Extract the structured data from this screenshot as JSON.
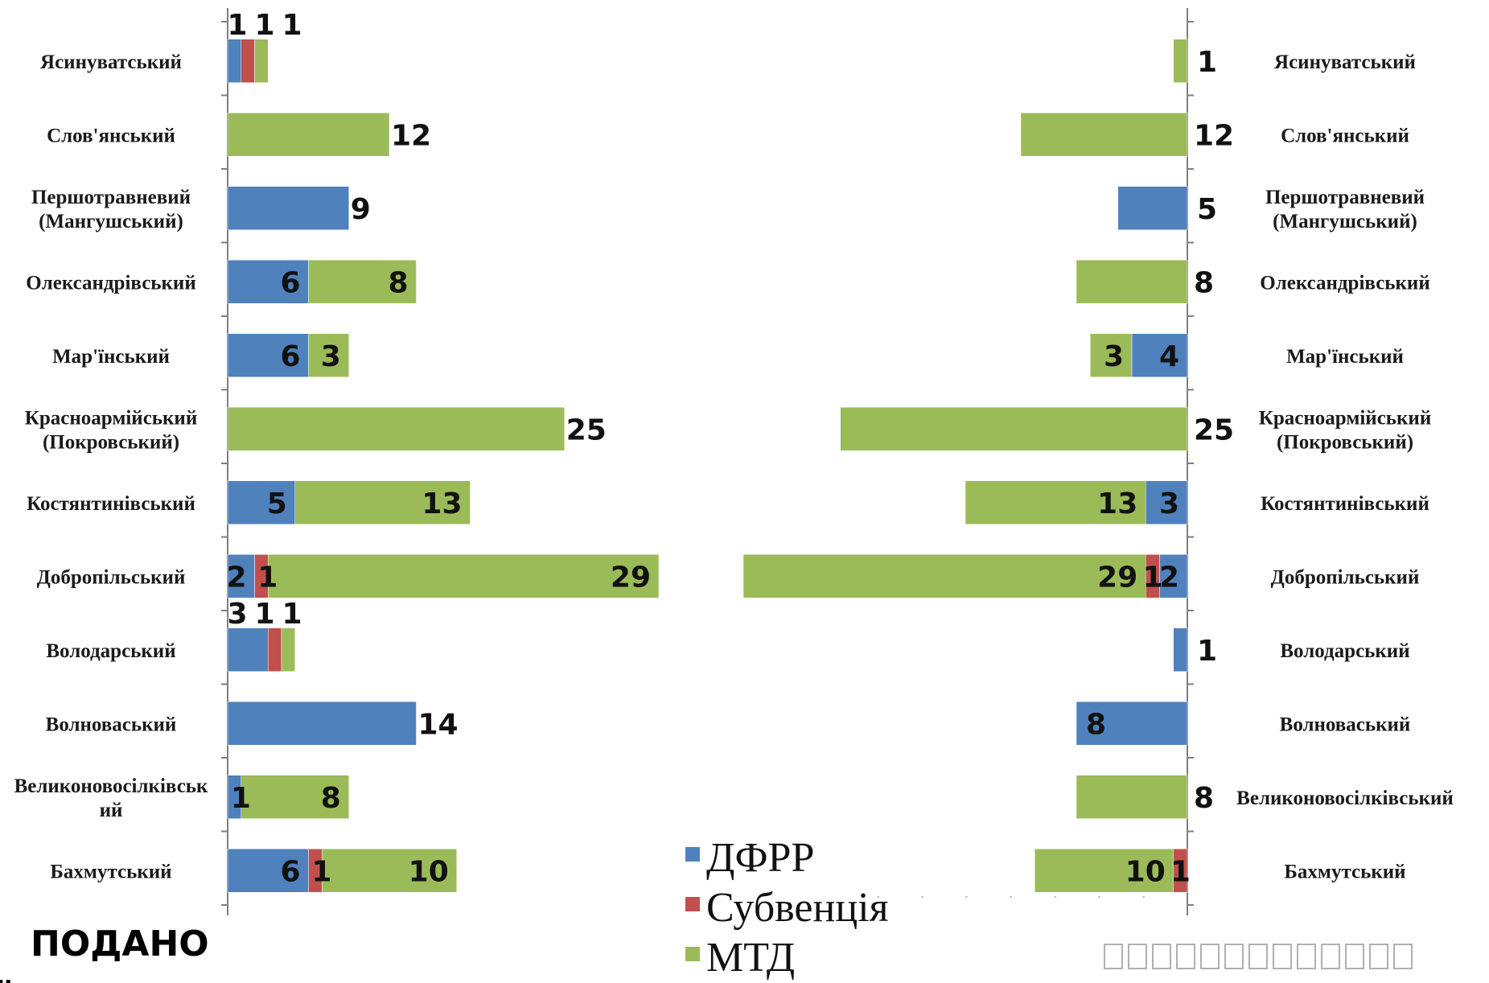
{
  "chart_data": [
    {
      "type": "bar",
      "orientation": "horizontal",
      "stacked": true,
      "categories": [
        "Ясинуватський",
        "Слов'янський",
        "Першотравневий (Мангушський)",
        "Олександрівський",
        "Мар'їнський",
        "Красноармійський (Покровський)",
        "Костянтинівський",
        "Добропільський",
        "Володарський",
        "Волноваський",
        "Великоновосілківський",
        "Бахмутський"
      ],
      "category_lines": [
        [
          "Ясинуватський"
        ],
        [
          "Слов'янський"
        ],
        [
          "Першотравневий",
          "(Мангушський)"
        ],
        [
          "Олександрівський"
        ],
        [
          "Мар'їнський"
        ],
        [
          "Красноармійський",
          "(Покровський)"
        ],
        [
          "Костянтинівський"
        ],
        [
          "Добропільський"
        ],
        [
          "Володарський"
        ],
        [
          "Волноваський"
        ],
        [
          "Великоновосілківськ",
          "ий"
        ],
        [
          "Бахмутський"
        ]
      ],
      "series": [
        {
          "name": "ДФРР",
          "color": "#4f81bd",
          "values": [
            1,
            0,
            9,
            6,
            6,
            0,
            5,
            2,
            3,
            14,
            1,
            6
          ]
        },
        {
          "name": "Субвенція",
          "color": "#c0504d",
          "values": [
            1,
            0,
            0,
            0,
            0,
            0,
            0,
            1,
            1,
            0,
            0,
            1
          ]
        },
        {
          "name": "МТД",
          "color": "#9bbb59",
          "values": [
            1,
            12,
            0,
            8,
            3,
            25,
            13,
            29,
            1,
            0,
            8,
            10
          ]
        }
      ]
    },
    {
      "type": "bar",
      "orientation": "horizontal-reversed",
      "stacked": true,
      "categories": [
        "Ясинуватський",
        "Слов'янський",
        "Першотравневий (Мангушський)",
        "Олександрівський",
        "Мар'їнський",
        "Красноармійський (Покровський)",
        "Костянтинівський",
        "Добропільський",
        "Володарський",
        "Волноваський",
        "Великоновосілківський",
        "Бахмутський"
      ],
      "category_lines": [
        [
          "Ясинуватський"
        ],
        [
          "Слов'янський"
        ],
        [
          "Першотравневий",
          "(Мангушський)"
        ],
        [
          "Олександрівський"
        ],
        [
          "Мар'їнський"
        ],
        [
          "Красноармійський",
          "(Покровський)"
        ],
        [
          "Костянтинівський"
        ],
        [
          "Добропільський"
        ],
        [
          "Володарський"
        ],
        [
          "Волноваський"
        ],
        [
          "Великоновосілківський"
        ],
        [
          "Бахмутський"
        ]
      ],
      "series": [
        {
          "name": "ДФРР",
          "color": "#4f81bd",
          "values": [
            0,
            0,
            5,
            0,
            4,
            0,
            3,
            2,
            1,
            8,
            0,
            0
          ]
        },
        {
          "name": "Субвенція",
          "color": "#c0504d",
          "values": [
            0,
            0,
            0,
            0,
            0,
            0,
            0,
            1,
            0,
            0,
            0,
            1
          ]
        },
        {
          "name": "МТД",
          "color": "#9bbb59",
          "values": [
            1,
            12,
            0,
            8,
            3,
            25,
            13,
            29,
            0,
            0,
            8,
            10
          ]
        }
      ]
    }
  ],
  "legend": {
    "items": [
      {
        "label": "ДФРР",
        "color": "#4f81bd"
      },
      {
        "label": "Субвенція",
        "color": "#c0504d"
      },
      {
        "label": "МТД",
        "color": "#9bbb59"
      }
    ]
  },
  "footer": {
    "title": "ПОДАНО",
    "placeholder": "□□□□□□□□□□□□□"
  }
}
